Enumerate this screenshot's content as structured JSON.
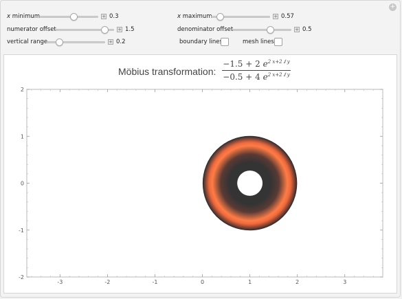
{
  "controls": {
    "x_min": {
      "label_var": "x",
      "label_rest": " minimum",
      "value": "0.3",
      "position": 0.3
    },
    "x_max": {
      "label_var": "x",
      "label_rest": " maximum",
      "value": "0.57",
      "position": 0.2
    },
    "num_offset": {
      "label": "numerator offset",
      "value": "1.5",
      "position": 0.75
    },
    "den_offset": {
      "label": "denominator offset",
      "value": "0.5",
      "position": 0.55
    },
    "vert_range": {
      "label": "vertical range",
      "value": "0.2",
      "position": 0.1
    },
    "boundary_lines": {
      "label": "boundary lines",
      "checked": false
    },
    "mesh_lines": {
      "label": "mesh lines",
      "checked": false
    }
  },
  "title": {
    "prefix": "Möbius transformation:",
    "num_const": "−1.5 + 2",
    "den_const": "−0.5 + 4",
    "e": "e",
    "exp": "2 x+2 ⅈ y"
  },
  "chart_data": {
    "type": "region",
    "xlim": [
      -3.7,
      3.8
    ],
    "ylim": [
      -2,
      2
    ],
    "x_ticks": [
      "-3",
      "-2",
      "-1",
      "0",
      "1",
      "2",
      "3"
    ],
    "x_tick_values": [
      -3,
      -2,
      -1,
      0,
      1,
      2,
      3
    ],
    "y_ticks": [
      "2",
      "1",
      "0",
      "-1",
      "-2"
    ],
    "y_tick_values": [
      2,
      1,
      0,
      -1,
      -2
    ],
    "annulus": {
      "center": [
        1.0,
        0.0
      ],
      "outer_radius": 1.0,
      "inner_radius": 0.27
    },
    "colors": {
      "dark": "#333333",
      "bright": "#ff7a45",
      "edge": "#2e2e2e"
    }
  }
}
